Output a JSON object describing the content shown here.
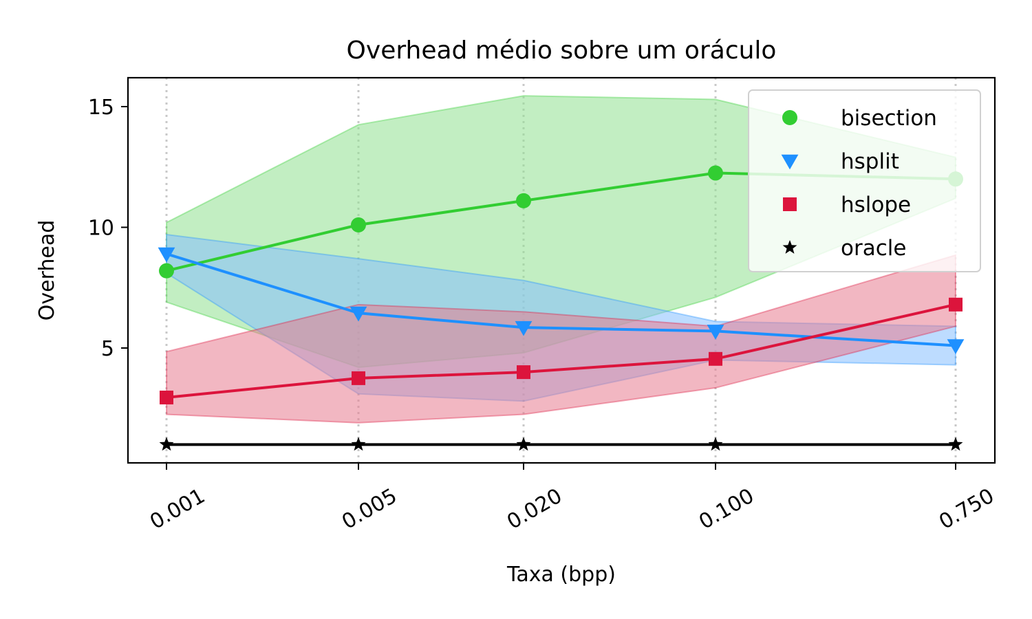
{
  "chart_data": {
    "type": "line",
    "title": "Overhead médio sobre um oráculo",
    "xlabel": "Taxa (bpp)",
    "ylabel": "Overhead",
    "x_tick_labels": [
      "0.001",
      "0.005",
      "0.020",
      "0.100",
      "0.750"
    ],
    "y_ticks": [
      5,
      10,
      15
    ],
    "ylim": [
      0.25,
      16.1
    ],
    "grid": "vertical dotted lines at x ticks",
    "legend_position": "top-right",
    "series": [
      {
        "name": "bisection",
        "color": "#32cd32",
        "band_color": "#90e090",
        "marker": "circle",
        "values": [
          8.2,
          10.1,
          11.1,
          12.25,
          12.0
        ],
        "lower": [
          6.9,
          4.2,
          4.8,
          7.1,
          11.2
        ],
        "upper": [
          10.2,
          14.25,
          15.45,
          15.3,
          12.9
        ]
      },
      {
        "name": "hsplit",
        "color": "#1e90ff",
        "band_color": "#87bfff",
        "marker": "triangle-down",
        "values": [
          8.9,
          6.45,
          5.85,
          5.7,
          5.1
        ],
        "lower": [
          8.1,
          3.1,
          2.8,
          4.5,
          4.3
        ],
        "upper": [
          9.7,
          8.7,
          7.8,
          6.1,
          5.9
        ]
      },
      {
        "name": "hslope",
        "color": "#dc143c",
        "band_color": "#e87b90",
        "marker": "square",
        "values": [
          2.95,
          3.75,
          4.0,
          4.55,
          6.8
        ],
        "lower": [
          2.25,
          1.9,
          2.25,
          3.35,
          5.9
        ],
        "upper": [
          4.85,
          6.8,
          6.5,
          5.9,
          8.85
        ]
      },
      {
        "name": "oracle",
        "color": "#000000",
        "marker": "star",
        "values": [
          1.0,
          1.0,
          1.0,
          1.0,
          1.0
        ]
      }
    ]
  }
}
